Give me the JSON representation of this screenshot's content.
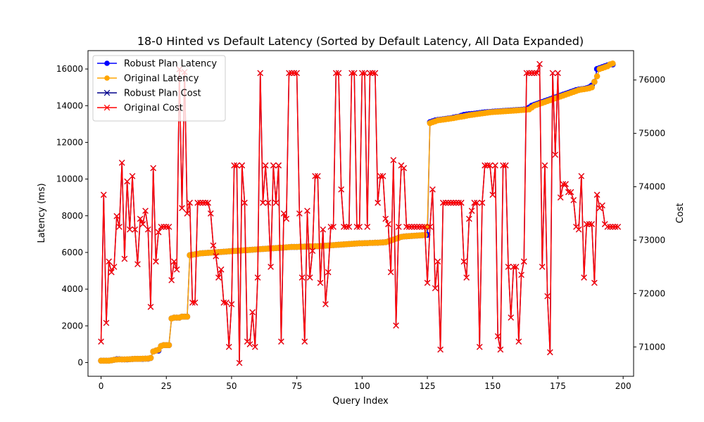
{
  "chart_data": {
    "type": "line",
    "title": "18-0 Hinted vs Default Latency (Sorted by Default Latency, All Data Expanded)",
    "xlabel": "Query Index",
    "ylabel": "Latency (ms)",
    "y2label": "Cost",
    "xlim": [
      -5,
      204
    ],
    "ylim": [
      -750,
      17000
    ],
    "y2lim": [
      70450,
      76550
    ],
    "x_ticks": [
      0,
      25,
      50,
      75,
      100,
      125,
      150,
      175,
      200
    ],
    "y_ticks": [
      0,
      2000,
      4000,
      6000,
      8000,
      10000,
      12000,
      14000,
      16000
    ],
    "y2_ticks": [
      71000,
      72000,
      73000,
      74000,
      75000,
      76000
    ],
    "x_tick_labels": [
      "0",
      "25",
      "50",
      "75",
      "100",
      "125",
      "150",
      "175",
      "200"
    ],
    "y_tick_labels": [
      "0",
      "2000",
      "4000",
      "6000",
      "8000",
      "10000",
      "12000",
      "14000",
      "16000"
    ],
    "y2_tick_labels": [
      "71000",
      "72000",
      "73000",
      "74000",
      "75000",
      "76000"
    ],
    "legend_position": "top-left",
    "series": [
      {
        "name": "Robust Plan Latency",
        "axis": "left",
        "color": "#0000ff",
        "marker": "circle",
        "values": [
          100,
          100,
          100,
          100,
          120,
          150,
          180,
          180,
          170,
          170,
          170,
          180,
          190,
          200,
          200,
          200,
          200,
          210,
          210,
          250,
          600,
          650,
          650,
          900,
          950,
          950,
          950,
          2400,
          2450,
          2450,
          2450,
          2500,
          2500,
          2500,
          5850,
          5880,
          5900,
          5920,
          5950,
          5960,
          5970,
          5980,
          5990,
          6000,
          6010,
          6020,
          6030,
          6040,
          6050,
          6060,
          6070,
          6080,
          6090,
          6100,
          6110,
          6120,
          6130,
          6140,
          6150,
          6160,
          6170,
          6180,
          6190,
          6200,
          6210,
          6220,
          6230,
          6240,
          6250,
          6260,
          6270,
          6280,
          6290,
          6300,
          6300,
          6300,
          6310,
          6310,
          6320,
          6320,
          6330,
          6330,
          6340,
          6340,
          6350,
          6360,
          6370,
          6380,
          6390,
          6400,
          6410,
          6420,
          6430,
          6440,
          6450,
          6460,
          6470,
          6480,
          6490,
          6500,
          6500,
          6510,
          6510,
          6520,
          6520,
          6530,
          6530,
          6540,
          6550,
          6560,
          6600,
          6650,
          6700,
          6750,
          6800,
          6850,
          6870,
          6880,
          6890,
          6900,
          6910,
          6920,
          6930,
          6940,
          6950,
          6960,
          13100,
          13150,
          13200,
          13220,
          13240,
          13260,
          13280,
          13300,
          13320,
          13350,
          13380,
          13400,
          13450,
          13500,
          13520,
          13540,
          13550,
          13560,
          13580,
          13600,
          13620,
          13640,
          13650,
          13660,
          13670,
          13680,
          13690,
          13700,
          13710,
          13720,
          13730,
          13740,
          13750,
          13760,
          13770,
          13780,
          13790,
          13800,
          13900,
          14000,
          14050,
          14100,
          14150,
          14200,
          14250,
          14300,
          14350,
          14400,
          14450,
          14500,
          14550,
          14600,
          14650,
          14700,
          14750,
          14800,
          14850,
          14880,
          14900,
          14920,
          14950,
          15000,
          15100,
          15300,
          16000,
          16050,
          16100,
          16150,
          16200,
          16250,
          16250
        ]
      },
      {
        "name": "Original Latency",
        "axis": "left",
        "color": "#ffa500",
        "marker": "circle",
        "values": [
          100,
          100,
          100,
          100,
          120,
          150,
          160,
          170,
          170,
          170,
          180,
          180,
          190,
          200,
          200,
          200,
          210,
          210,
          220,
          250,
          600,
          650,
          700,
          900,
          950,
          950,
          950,
          2400,
          2450,
          2450,
          2450,
          2500,
          2500,
          2500,
          5850,
          5880,
          5900,
          5920,
          5950,
          5960,
          5970,
          5980,
          5990,
          6000,
          6010,
          6020,
          6030,
          6040,
          6050,
          6060,
          6070,
          6080,
          6090,
          6100,
          6110,
          6120,
          6130,
          6140,
          6150,
          6160,
          6170,
          6180,
          6190,
          6200,
          6210,
          6220,
          6230,
          6240,
          6250,
          6260,
          6270,
          6280,
          6290,
          6300,
          6300,
          6300,
          6310,
          6310,
          6320,
          6320,
          6330,
          6330,
          6340,
          6340,
          6350,
          6360,
          6370,
          6380,
          6390,
          6400,
          6410,
          6420,
          6430,
          6440,
          6450,
          6460,
          6470,
          6480,
          6490,
          6500,
          6500,
          6510,
          6510,
          6520,
          6520,
          6530,
          6530,
          6540,
          6550,
          6560,
          6600,
          6650,
          6700,
          6750,
          6800,
          6850,
          6870,
          6880,
          6890,
          6900,
          6910,
          6920,
          6930,
          6940,
          6950,
          7400,
          13050,
          13100,
          13150,
          13200,
          13220,
          13240,
          13260,
          13280,
          13300,
          13320,
          13350,
          13380,
          13400,
          13420,
          13450,
          13480,
          13500,
          13520,
          13540,
          13560,
          13580,
          13600,
          13620,
          13640,
          13650,
          13660,
          13670,
          13680,
          13690,
          13700,
          13710,
          13720,
          13730,
          13740,
          13750,
          13760,
          13770,
          13780,
          13800,
          13900,
          14000,
          14050,
          14100,
          14150,
          14200,
          14250,
          14300,
          14350,
          14400,
          14450,
          14500,
          14550,
          14600,
          14650,
          14700,
          14750,
          14800,
          14850,
          14880,
          14900,
          14920,
          14950,
          15000,
          15300,
          15600,
          16000,
          16050,
          16100,
          16150,
          16250,
          16300
        ]
      },
      {
        "name": "Robust Plan Cost",
        "axis": "right",
        "color": "#00008b",
        "marker": "x",
        "values": [
          71100,
          73850,
          71450,
          72600,
          72400,
          72500,
          73450,
          73250,
          74450,
          72650,
          74100,
          73200,
          74200,
          73200,
          72550,
          73400,
          73300,
          73550,
          73200,
          71750,
          74350,
          72600,
          73150,
          73250,
          73250,
          73250,
          73250,
          72250,
          72600,
          72450,
          76200,
          73600,
          76150,
          73500,
          73700,
          71830,
          71830,
          73700,
          73700,
          73700,
          73700,
          73700,
          73500,
          72900,
          72700,
          72300,
          72450,
          71830,
          71830,
          71000,
          71800,
          74400,
          74400,
          70700,
          74400,
          73700,
          71100,
          71050,
          71650,
          71000,
          72300,
          76130,
          73700,
          74400,
          73700,
          72500,
          74400,
          73700,
          74400,
          71100,
          73500,
          73400,
          76130,
          76130,
          76130,
          76130,
          73500,
          72300,
          71100,
          73550,
          72300,
          72800,
          74200,
          74200,
          72200,
          73200,
          71800,
          72400,
          73250,
          73250,
          76130,
          76130,
          73950,
          73250,
          73250,
          73250,
          76130,
          76130,
          73250,
          73250,
          76130,
          76130,
          73250,
          76130,
          76130,
          76130,
          73700,
          74200,
          74200,
          73400,
          73300,
          72400,
          74500,
          71400,
          73250,
          74400,
          74350,
          73250,
          73250,
          73250,
          73250,
          73250,
          73250,
          73250,
          73250,
          72200,
          73250,
          73950,
          72100,
          72600,
          70950,
          73700,
          73700,
          73700,
          73700,
          73700,
          73700,
          73700,
          73700,
          72600,
          72300,
          73400,
          73550,
          73700,
          73700,
          71000,
          73700,
          74400,
          74400,
          74400,
          73850,
          74400,
          71200,
          70950,
          74400,
          74400,
          72500,
          71550,
          72500,
          72500,
          71100,
          72350,
          72600,
          76130,
          76130,
          76130,
          76130,
          76130,
          76300,
          72500,
          74400,
          71950,
          70900,
          76130,
          74600,
          76130,
          73800,
          74050,
          74050,
          73900,
          73900,
          73750,
          73250,
          73200,
          74200,
          72300,
          73300,
          73300,
          73300,
          72200,
          73850,
          73600,
          73650,
          73300,
          73250,
          73250,
          73250,
          73250,
          73250
        ]
      },
      {
        "name": "Original Cost",
        "axis": "right",
        "color": "#ff0000",
        "marker": "x",
        "values": [
          71100,
          73850,
          71450,
          72600,
          72400,
          72500,
          73450,
          73250,
          74450,
          72650,
          74100,
          73200,
          74200,
          73200,
          72550,
          73400,
          73300,
          73550,
          73200,
          71750,
          74350,
          72600,
          73150,
          73250,
          73250,
          73250,
          73250,
          72250,
          72600,
          72450,
          76200,
          73600,
          76150,
          73500,
          73700,
          71830,
          71830,
          73700,
          73700,
          73700,
          73700,
          73700,
          73500,
          72900,
          72700,
          72300,
          72450,
          71830,
          71830,
          71000,
          71800,
          74400,
          74400,
          70700,
          74400,
          73700,
          71100,
          71050,
          71650,
          71000,
          72300,
          76130,
          73700,
          74400,
          73700,
          72500,
          74400,
          73700,
          74400,
          71100,
          73500,
          73400,
          76130,
          76130,
          76130,
          76130,
          73500,
          72300,
          71100,
          73550,
          72300,
          72800,
          74200,
          74200,
          72200,
          73200,
          71800,
          72400,
          73250,
          73250,
          76130,
          76130,
          73950,
          73250,
          73250,
          73250,
          76130,
          76130,
          73250,
          73250,
          76130,
          76130,
          73250,
          76130,
          76130,
          76130,
          73700,
          74200,
          74200,
          73400,
          73300,
          72400,
          74500,
          71400,
          73250,
          74400,
          74350,
          73250,
          73250,
          73250,
          73250,
          73250,
          73250,
          73250,
          73250,
          72200,
          73250,
          73950,
          72100,
          72600,
          70950,
          73700,
          73700,
          73700,
          73700,
          73700,
          73700,
          73700,
          73700,
          72600,
          72300,
          73400,
          73550,
          73700,
          73700,
          71000,
          73700,
          74400,
          74400,
          74400,
          73850,
          74400,
          71200,
          70950,
          74400,
          74400,
          72500,
          71550,
          72500,
          72500,
          71100,
          72350,
          72600,
          76130,
          76130,
          76130,
          76130,
          76130,
          76300,
          72500,
          74400,
          71950,
          70900,
          76130,
          74600,
          76130,
          73800,
          74050,
          74050,
          73900,
          73900,
          73750,
          73250,
          73200,
          74200,
          72300,
          73300,
          73300,
          73300,
          72200,
          73850,
          73600,
          73650,
          73300,
          73250,
          73250,
          73250,
          73250,
          73250
        ]
      }
    ]
  }
}
